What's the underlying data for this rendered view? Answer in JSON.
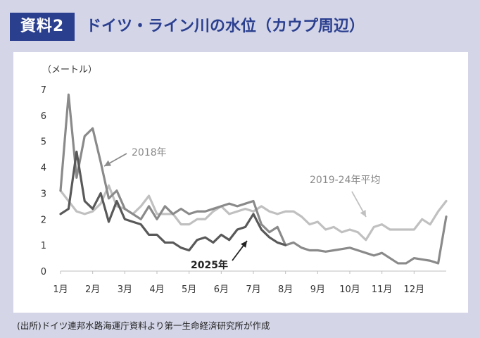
{
  "header": {
    "badge": "資料2",
    "title": "ドイツ・ライン川の水位（カウプ周辺）"
  },
  "footer": {
    "source": "(出所)ドイツ連邦水路海運庁資料より第一生命経済研究所が作成"
  },
  "colors": {
    "frame_bg": "#d4d6e8",
    "brand": "#2b3f8f",
    "series_2018": "#8a8a8a",
    "series_2025": "#595959",
    "series_avg": "#c0c0c0"
  },
  "chart_data": {
    "type": "line",
    "title": "ドイツ・ライン川の水位（カウプ周辺）",
    "ylabel": "（メートル）",
    "xlabel": "",
    "ylim": [
      0,
      7
    ],
    "yticks": [
      0,
      1,
      2,
      3,
      4,
      5,
      6,
      7
    ],
    "xlim": [
      0,
      12
    ],
    "x_tick_labels": [
      "1月",
      "2月",
      "3月",
      "4月",
      "5月",
      "6月",
      "7月",
      "8月",
      "9月",
      "10月",
      "11月",
      "12月"
    ],
    "grid": false,
    "series": [
      {
        "name": "2018年",
        "label": "2018年",
        "x": [
          0,
          0.25,
          0.5,
          0.75,
          1.0,
          1.25,
          1.5,
          1.75,
          2.0,
          2.25,
          2.5,
          2.75,
          3.0,
          3.25,
          3.5,
          3.75,
          4.0,
          4.25,
          4.5,
          4.75,
          5.0,
          5.25,
          5.5,
          5.75,
          6.0,
          6.25,
          6.5,
          6.75,
          7.0,
          7.25,
          7.5,
          7.75,
          8.0,
          8.25,
          8.5,
          8.75,
          9.0,
          9.25,
          9.5,
          9.75,
          10.0,
          10.25,
          10.5,
          10.75,
          11.0,
          11.25,
          11.5,
          11.75,
          12.0
        ],
        "values": [
          3.1,
          6.8,
          3.6,
          5.2,
          5.5,
          4.2,
          2.8,
          3.1,
          2.4,
          2.2,
          2.0,
          2.5,
          2.0,
          2.5,
          2.2,
          2.4,
          2.2,
          2.3,
          2.3,
          2.4,
          2.5,
          2.6,
          2.5,
          2.6,
          2.7,
          1.8,
          1.5,
          1.7,
          1.0,
          1.1,
          0.9,
          0.8,
          0.8,
          0.75,
          0.8,
          0.85,
          0.9,
          0.8,
          0.7,
          0.6,
          0.7,
          0.5,
          0.3,
          0.3,
          0.5,
          0.45,
          0.4,
          0.3,
          2.1
        ]
      },
      {
        "name": "2025年",
        "label": "2025年",
        "x": [
          0,
          0.25,
          0.5,
          0.75,
          1.0,
          1.25,
          1.5,
          1.75,
          2.0,
          2.25,
          2.5,
          2.75,
          3.0,
          3.25,
          3.5,
          3.75,
          4.0,
          4.25,
          4.5,
          4.75,
          5.0,
          5.25,
          5.5,
          5.75,
          6.0,
          6.25,
          6.5,
          6.75,
          7.0
        ],
        "values": [
          2.2,
          2.4,
          4.6,
          2.7,
          2.4,
          3.0,
          1.9,
          2.7,
          2.0,
          1.9,
          1.8,
          1.4,
          1.4,
          1.1,
          1.1,
          0.9,
          0.8,
          1.2,
          1.3,
          1.1,
          1.4,
          1.2,
          1.6,
          1.7,
          2.2,
          1.6,
          1.3,
          1.1,
          1.0
        ]
      },
      {
        "name": "2019-24年平均",
        "label": "2019-24年平均",
        "x": [
          0,
          0.25,
          0.5,
          0.75,
          1.0,
          1.25,
          1.5,
          1.75,
          2.0,
          2.25,
          2.5,
          2.75,
          3.0,
          3.25,
          3.5,
          3.75,
          4.0,
          4.25,
          4.5,
          4.75,
          5.0,
          5.25,
          5.5,
          5.75,
          6.0,
          6.25,
          6.5,
          6.75,
          7.0,
          7.25,
          7.5,
          7.75,
          8.0,
          8.25,
          8.5,
          8.75,
          9.0,
          9.25,
          9.5,
          9.75,
          10.0,
          10.25,
          10.5,
          10.75,
          11.0,
          11.25,
          11.5,
          11.75,
          12.0
        ],
        "values": [
          3.1,
          2.7,
          2.3,
          2.2,
          2.3,
          2.6,
          3.3,
          2.5,
          2.4,
          2.2,
          2.5,
          2.9,
          2.2,
          2.2,
          2.2,
          1.8,
          1.8,
          2.0,
          2.0,
          2.3,
          2.5,
          2.2,
          2.3,
          2.4,
          2.3,
          2.5,
          2.3,
          2.2,
          2.3,
          2.3,
          2.1,
          1.8,
          1.9,
          1.6,
          1.7,
          1.5,
          1.6,
          1.5,
          1.2,
          1.7,
          1.8,
          1.6,
          1.6,
          1.6,
          1.6,
          2.0,
          1.8,
          2.3,
          2.7
        ]
      }
    ],
    "annotations": [
      {
        "text": "2018年",
        "series": "2018年"
      },
      {
        "text": "2025年",
        "series": "2025年"
      },
      {
        "text": "2019-24年平均",
        "series": "2019-24年平均"
      }
    ]
  }
}
